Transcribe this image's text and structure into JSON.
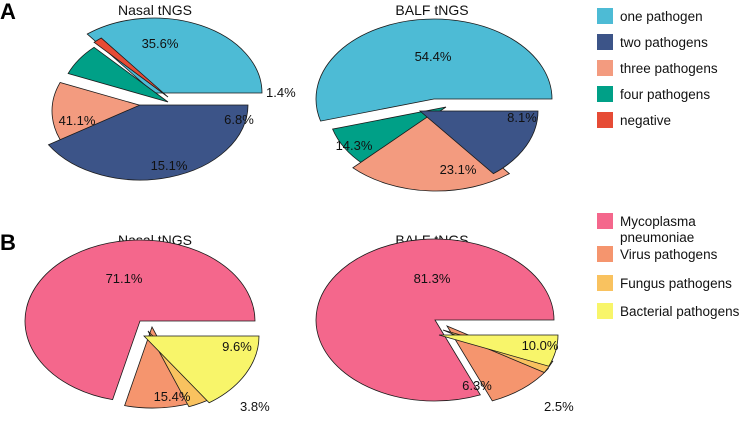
{
  "panels": [
    {
      "letter": "A",
      "legend": [
        {
          "label": "one pathogen",
          "color": "#4DBBD5"
        },
        {
          "label": "two pathogens",
          "color": "#3C5488"
        },
        {
          "label": "three pathogens",
          "color": "#F39B7F"
        },
        {
          "label": "four pathogens",
          "color": "#00A087"
        },
        {
          "label": "negative",
          "color": "#E64B35"
        }
      ]
    },
    {
      "letter": "B",
      "legend": [
        {
          "label": "Mycoplasma\npneumoniae",
          "color": "#F4678C"
        },
        {
          "label": "Virus pathogens",
          "color": "#F5956E"
        },
        {
          "label": "Fungus pathogens",
          "color": "#F9C25F"
        },
        {
          "label": "Bacterial pathogens",
          "color": "#F8F56A"
        }
      ]
    }
  ],
  "chart_data": [
    {
      "type": "pie",
      "style": "3d-exploded",
      "panel": "A",
      "title": "Nasal tNGS",
      "slices": [
        {
          "label": "one pathogen",
          "value": 35.6,
          "display": "35.6%",
          "color": "#4DBBD5"
        },
        {
          "label": "negative",
          "value": 1.4,
          "display": "1.4%",
          "color": "#E64B35"
        },
        {
          "label": "four pathogens",
          "value": 6.8,
          "display": "6.8%",
          "color": "#00A087"
        },
        {
          "label": "three pathogens",
          "value": 15.1,
          "display": "15.1%",
          "color": "#F39B7F"
        },
        {
          "label": "two pathogens",
          "value": 41.1,
          "display": "41.1%",
          "color": "#3C5488"
        }
      ]
    },
    {
      "type": "pie",
      "style": "3d-exploded",
      "panel": "A",
      "title": "BALF tNGS",
      "slices": [
        {
          "label": "one pathogen",
          "value": 54.4,
          "display": "54.4%",
          "color": "#4DBBD5"
        },
        {
          "label": "four pathogens",
          "value": 8.1,
          "display": "8.1%",
          "color": "#00A087"
        },
        {
          "label": "three pathogens",
          "value": 23.1,
          "display": "23.1%",
          "color": "#F39B7F"
        },
        {
          "label": "two pathogens",
          "value": 14.3,
          "display": "14.3%",
          "color": "#3C5488"
        }
      ]
    },
    {
      "type": "pie",
      "style": "3d-exploded",
      "panel": "B",
      "title": "Nasal tNGS",
      "slices": [
        {
          "label": "Mycoplasma pneumoniae",
          "value": 71.1,
          "display": "71.1%",
          "color": "#F4678C"
        },
        {
          "label": "Virus pathogens",
          "value": 9.6,
          "display": "9.6%",
          "color": "#F5956E"
        },
        {
          "label": "Fungus pathogens",
          "value": 3.8,
          "display": "3.8%",
          "color": "#F9C25F"
        },
        {
          "label": "Bacterial pathogens",
          "value": 15.4,
          "display": "15.4%",
          "color": "#F8F56A"
        }
      ]
    },
    {
      "type": "pie",
      "style": "3d-exploded",
      "panel": "B",
      "title": "BALF tNGS",
      "slices": [
        {
          "label": "Mycoplasma pneumoniae",
          "value": 81.3,
          "display": "81.3%",
          "color": "#F4678C"
        },
        {
          "label": "Virus pathogens",
          "value": 10.0,
          "display": "10.0%",
          "color": "#F5956E"
        },
        {
          "label": "Fungus pathogens",
          "value": 2.5,
          "display": "2.5%",
          "color": "#F9C25F"
        },
        {
          "label": "Bacterial pathogens",
          "value": 6.3,
          "display": "6.3%",
          "color": "#F8F56A"
        }
      ]
    }
  ]
}
